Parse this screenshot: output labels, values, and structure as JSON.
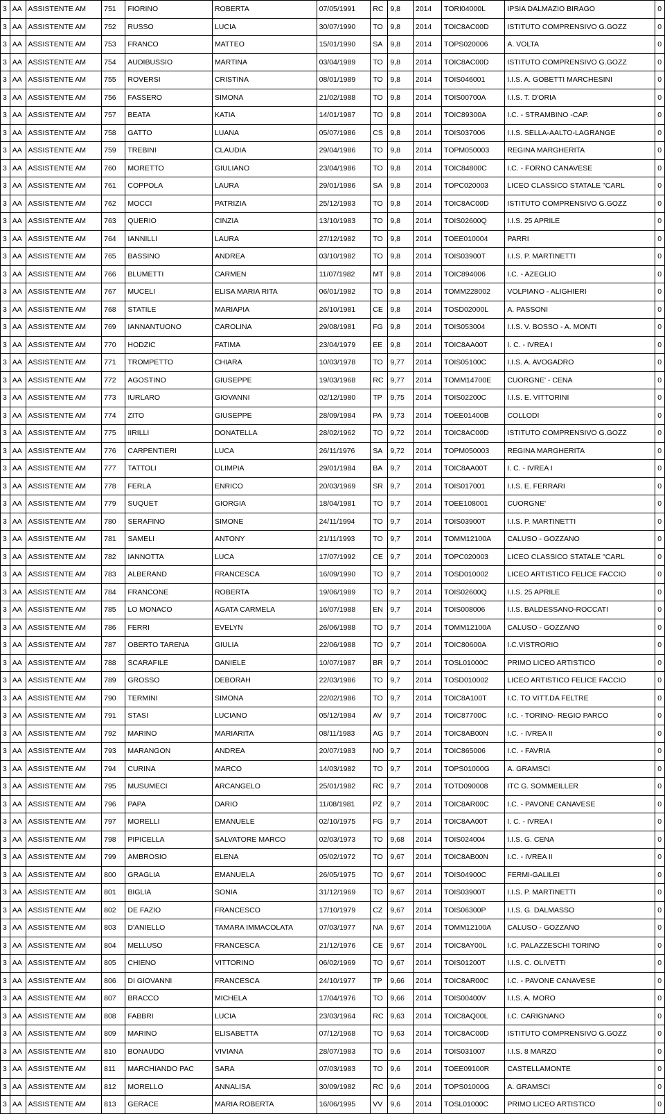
{
  "rows": [
    {
      "n": "751",
      "ln": "FIORINO",
      "fn": "ROBERTA",
      "dob": "07/05/1991",
      "pv": "RC",
      "sc": "9,8",
      "yr": "2014",
      "code": "TORI04000L",
      "school": "IPSIA DALMAZIO BIRAGO",
      "z": "0"
    },
    {
      "n": "752",
      "ln": "RUSSO",
      "fn": "LUCIA",
      "dob": "30/07/1990",
      "pv": "TO",
      "sc": "9,8",
      "yr": "2014",
      "code": "TOIC8AC00D",
      "school": "ISTITUTO COMPRENSIVO G.GOZZ",
      "z": "0"
    },
    {
      "n": "753",
      "ln": "FRANCO",
      "fn": "MATTEO",
      "dob": "15/01/1990",
      "pv": "SA",
      "sc": "9,8",
      "yr": "2014",
      "code": "TOPS020006",
      "school": "A. VOLTA",
      "z": "0"
    },
    {
      "n": "754",
      "ln": "AUDIBUSSIO",
      "fn": "MARTINA",
      "dob": "03/04/1989",
      "pv": "TO",
      "sc": "9,8",
      "yr": "2014",
      "code": "TOIC8AC00D",
      "school": "ISTITUTO COMPRENSIVO G.GOZZ",
      "z": "0"
    },
    {
      "n": "755",
      "ln": "ROVERSI",
      "fn": "CRISTINA",
      "dob": "08/01/1989",
      "pv": "TO",
      "sc": "9,8",
      "yr": "2014",
      "code": "TOIS046001",
      "school": "I.I.S. A. GOBETTI MARCHESINI",
      "z": "0"
    },
    {
      "n": "756",
      "ln": "FASSERO",
      "fn": "SIMONA",
      "dob": "21/02/1988",
      "pv": "TO",
      "sc": "9,8",
      "yr": "2014",
      "code": "TOIS00700A",
      "school": "I.I.S. T. D'ORIA",
      "z": "0"
    },
    {
      "n": "757",
      "ln": "BEATA",
      "fn": "KATIA",
      "dob": "14/01/1987",
      "pv": "TO",
      "sc": "9,8",
      "yr": "2014",
      "code": "TOIC89300A",
      "school": "I.C.  - STRAMBINO -CAP.",
      "z": "0"
    },
    {
      "n": "758",
      "ln": "GATTO",
      "fn": "LUANA",
      "dob": "05/07/1986",
      "pv": "CS",
      "sc": "9,8",
      "yr": "2014",
      "code": "TOIS037006",
      "school": "I.I.S. SELLA-AALTO-LAGRANGE",
      "z": "0"
    },
    {
      "n": "759",
      "ln": "TREBINI",
      "fn": "CLAUDIA",
      "dob": "29/04/1986",
      "pv": "TO",
      "sc": "9,8",
      "yr": "2014",
      "code": "TOPM050003",
      "school": "REGINA MARGHERITA",
      "z": "0"
    },
    {
      "n": "760",
      "ln": "MORETTO",
      "fn": "GIULIANO",
      "dob": "23/04/1986",
      "pv": "TO",
      "sc": "9,8",
      "yr": "2014",
      "code": "TOIC84800C",
      "school": "I.C. - FORNO CANAVESE",
      "z": "0"
    },
    {
      "n": "761",
      "ln": "COPPOLA",
      "fn": "LAURA",
      "dob": "29/01/1986",
      "pv": "SA",
      "sc": "9,8",
      "yr": "2014",
      "code": "TOPC020003",
      "school": "LICEO CLASSICO STATALE \"CARL",
      "z": "0"
    },
    {
      "n": "762",
      "ln": "MOCCI",
      "fn": "PATRIZIA",
      "dob": "25/12/1983",
      "pv": "TO",
      "sc": "9,8",
      "yr": "2014",
      "code": "TOIC8AC00D",
      "school": "ISTITUTO COMPRENSIVO G.GOZZ",
      "z": "0"
    },
    {
      "n": "763",
      "ln": "QUERIO",
      "fn": "CINZIA",
      "dob": "13/10/1983",
      "pv": "TO",
      "sc": "9,8",
      "yr": "2014",
      "code": "TOIS02600Q",
      "school": "I.I.S. 25 APRILE",
      "z": "0"
    },
    {
      "n": "764",
      "ln": "IANNILLI",
      "fn": "LAURA",
      "dob": "27/12/1982",
      "pv": "TO",
      "sc": "9,8",
      "yr": "2014",
      "code": "TOEE010004",
      "school": "PARRI",
      "z": "0"
    },
    {
      "n": "765",
      "ln": "BASSINO",
      "fn": "ANDREA",
      "dob": "03/10/1982",
      "pv": "TO",
      "sc": "9,8",
      "yr": "2014",
      "code": "TOIS03900T",
      "school": "I.I.S. P. MARTINETTI",
      "z": "0"
    },
    {
      "n": "766",
      "ln": "BLUMETTI",
      "fn": "CARMEN",
      "dob": "11/07/1982",
      "pv": "MT",
      "sc": "9,8",
      "yr": "2014",
      "code": "TOIC894006",
      "school": "I.C. -  AZEGLIO",
      "z": "0"
    },
    {
      "n": "767",
      "ln": "MUCELI",
      "fn": "ELISA MARIA RITA",
      "dob": "06/01/1982",
      "pv": "TO",
      "sc": "9,8",
      "yr": "2014",
      "code": "TOMM228002",
      "school": "VOLPIANO - ALIGHIERI",
      "z": "0"
    },
    {
      "n": "768",
      "ln": "STATILE",
      "fn": "MARIAPIA",
      "dob": "26/10/1981",
      "pv": "CE",
      "sc": "9,8",
      "yr": "2014",
      "code": "TOSD02000L",
      "school": "A. PASSONI",
      "z": "0"
    },
    {
      "n": "769",
      "ln": "IANNANTUONO",
      "fn": "CAROLINA",
      "dob": "29/08/1981",
      "pv": "FG",
      "sc": "9,8",
      "yr": "2014",
      "code": "TOIS053004",
      "school": "I.I.S. V. BOSSO - A. MONTI",
      "z": "0"
    },
    {
      "n": "770",
      "ln": "HODZIC",
      "fn": "FATIMA",
      "dob": "23/04/1979",
      "pv": "EE",
      "sc": "9,8",
      "yr": "2014",
      "code": "TOIC8AA00T",
      "school": "I. C. - IVREA I",
      "z": "0"
    },
    {
      "n": "771",
      "ln": "TROMPETTO",
      "fn": "CHIARA",
      "dob": "10/03/1978",
      "pv": "TO",
      "sc": "9,77",
      "yr": "2014",
      "code": "TOIS05100C",
      "school": "I.I.S. A. AVOGADRO",
      "z": "0"
    },
    {
      "n": "772",
      "ln": "AGOSTINO",
      "fn": "GIUSEPPE",
      "dob": "19/03/1968",
      "pv": "RC",
      "sc": "9,77",
      "yr": "2014",
      "code": "TOMM14700E",
      "school": "CUORGNE' - CENA",
      "z": "0"
    },
    {
      "n": "773",
      "ln": "IURLARO",
      "fn": "GIOVANNI",
      "dob": "02/12/1980",
      "pv": "TP",
      "sc": "9,75",
      "yr": "2014",
      "code": "TOIS02200C",
      "school": "I.I.S. E. VITTORINI",
      "z": "0"
    },
    {
      "n": "774",
      "ln": "ZITO",
      "fn": "GIUSEPPE",
      "dob": "28/09/1984",
      "pv": "PA",
      "sc": "9,73",
      "yr": "2014",
      "code": "TOEE01400B",
      "school": "COLLODI",
      "z": "0"
    },
    {
      "n": "775",
      "ln": "IIRILLI",
      "fn": "DONATELLA",
      "dob": "28/02/1962",
      "pv": "TO",
      "sc": "9,72",
      "yr": "2014",
      "code": "TOIC8AC00D",
      "school": "ISTITUTO COMPRENSIVO G.GOZZ",
      "z": "0"
    },
    {
      "n": "776",
      "ln": "CARPENTIERI",
      "fn": "LUCA",
      "dob": "26/11/1976",
      "pv": "SA",
      "sc": "9,72",
      "yr": "2014",
      "code": "TOPM050003",
      "school": "REGINA MARGHERITA",
      "z": "0"
    },
    {
      "n": "777",
      "ln": "TATTOLI",
      "fn": "OLIMPIA",
      "dob": "29/01/1984",
      "pv": "BA",
      "sc": "9,7",
      "yr": "2014",
      "code": "TOIC8AA00T",
      "school": "I. C. - IVREA I",
      "z": "0"
    },
    {
      "n": "778",
      "ln": "FERLA",
      "fn": "ENRICO",
      "dob": "20/03/1969",
      "pv": "SR",
      "sc": "9,7",
      "yr": "2014",
      "code": "TOIS017001",
      "school": "I.I.S. E. FERRARI",
      "z": "0"
    },
    {
      "n": "779",
      "ln": "SUQUET",
      "fn": "GIORGIA",
      "dob": "18/04/1981",
      "pv": "TO",
      "sc": "9,7",
      "yr": "2014",
      "code": "TOEE108001",
      "school": "CUORGNE'",
      "z": "0"
    },
    {
      "n": "780",
      "ln": "SERAFINO",
      "fn": "SIMONE",
      "dob": "24/11/1994",
      "pv": "TO",
      "sc": "9,7",
      "yr": "2014",
      "code": "TOIS03900T",
      "school": "I.I.S. P. MARTINETTI",
      "z": "0"
    },
    {
      "n": "781",
      "ln": "SAMELI",
      "fn": "ANTONY",
      "dob": "21/11/1993",
      "pv": "TO",
      "sc": "9,7",
      "yr": "2014",
      "code": "TOMM12100A",
      "school": "CALUSO - GOZZANO",
      "z": "0"
    },
    {
      "n": "782",
      "ln": "IANNOTTA",
      "fn": "LUCA",
      "dob": "17/07/1992",
      "pv": "CE",
      "sc": "9,7",
      "yr": "2014",
      "code": "TOPC020003",
      "school": "LICEO CLASSICO STATALE \"CARL",
      "z": "0"
    },
    {
      "n": "783",
      "ln": "ALBERAND",
      "fn": "FRANCESCA",
      "dob": "16/09/1990",
      "pv": "TO",
      "sc": "9,7",
      "yr": "2014",
      "code": "TOSD010002",
      "school": "LICEO ARTISTICO FELICE FACCIO",
      "z": "0"
    },
    {
      "n": "784",
      "ln": "FRANCONE",
      "fn": "ROBERTA",
      "dob": "19/06/1989",
      "pv": "TO",
      "sc": "9,7",
      "yr": "2014",
      "code": "TOIS02600Q",
      "school": "I.I.S. 25 APRILE",
      "z": "0"
    },
    {
      "n": "785",
      "ln": "LO MONACO",
      "fn": "AGATA CARMELA",
      "dob": "16/07/1988",
      "pv": "EN",
      "sc": "9,7",
      "yr": "2014",
      "code": "TOIS008006",
      "school": "I.I.S. BALDESSANO-ROCCATI",
      "z": "0"
    },
    {
      "n": "786",
      "ln": "FERRI",
      "fn": "EVELYN",
      "dob": "26/06/1988",
      "pv": "TO",
      "sc": "9,7",
      "yr": "2014",
      "code": "TOMM12100A",
      "school": "CALUSO - GOZZANO",
      "z": "0"
    },
    {
      "n": "787",
      "ln": "OBERTO TARENA",
      "fn": "GIULIA",
      "dob": "22/06/1988",
      "pv": "TO",
      "sc": "9,7",
      "yr": "2014",
      "code": "TOIC80600A",
      "school": "I.C.VISTRORIO",
      "z": "0"
    },
    {
      "n": "788",
      "ln": "SCARAFILE",
      "fn": "DANIELE",
      "dob": "10/07/1987",
      "pv": "BR",
      "sc": "9,7",
      "yr": "2014",
      "code": "TOSL01000C",
      "school": "PRIMO LICEO ARTISTICO",
      "z": "0"
    },
    {
      "n": "789",
      "ln": "GROSSO",
      "fn": "DEBORAH",
      "dob": "22/03/1986",
      "pv": "TO",
      "sc": "9,7",
      "yr": "2014",
      "code": "TOSD010002",
      "school": "LICEO ARTISTICO FELICE FACCIO",
      "z": "0"
    },
    {
      "n": "790",
      "ln": "TERMINI",
      "fn": "SIMONA",
      "dob": "22/02/1986",
      "pv": "TO",
      "sc": "9,7",
      "yr": "2014",
      "code": "TOIC8A100T",
      "school": "I.C. TO VITT.DA FELTRE",
      "z": "0"
    },
    {
      "n": "791",
      "ln": "STASI",
      "fn": "LUCIANO",
      "dob": "05/12/1984",
      "pv": "AV",
      "sc": "9,7",
      "yr": "2014",
      "code": "TOIC87700C",
      "school": "I.C. - TORINO- REGIO PARCO",
      "z": "0"
    },
    {
      "n": "792",
      "ln": "MARINO",
      "fn": "MARIARITA",
      "dob": "08/11/1983",
      "pv": "AG",
      "sc": "9,7",
      "yr": "2014",
      "code": "TOIC8AB00N",
      "school": "I.C. - IVREA II",
      "z": "0"
    },
    {
      "n": "793",
      "ln": "MARANGON",
      "fn": "ANDREA",
      "dob": "20/07/1983",
      "pv": "NO",
      "sc": "9,7",
      "yr": "2014",
      "code": "TOIC865006",
      "school": "I.C. - FAVRIA",
      "z": "0"
    },
    {
      "n": "794",
      "ln": "CURINA",
      "fn": "MARCO",
      "dob": "14/03/1982",
      "pv": "TO",
      "sc": "9,7",
      "yr": "2014",
      "code": "TOPS01000G",
      "school": "A. GRAMSCI",
      "z": "0"
    },
    {
      "n": "795",
      "ln": "MUSUMECI",
      "fn": "ARCANGELO",
      "dob": "25/01/1982",
      "pv": "RC",
      "sc": "9,7",
      "yr": "2014",
      "code": "TOTD090008",
      "school": "ITC G. SOMMEILLER",
      "z": "0"
    },
    {
      "n": "796",
      "ln": "PAPA",
      "fn": "DARIO",
      "dob": "11/08/1981",
      "pv": "PZ",
      "sc": "9,7",
      "yr": "2014",
      "code": "TOIC8AR00C",
      "school": "I.C. - PAVONE CANAVESE",
      "z": "0"
    },
    {
      "n": "797",
      "ln": "MORELLI",
      "fn": "EMANUELE",
      "dob": "02/10/1975",
      "pv": "FG",
      "sc": "9,7",
      "yr": "2014",
      "code": "TOIC8AA00T",
      "school": "I. C. - IVREA I",
      "z": "0"
    },
    {
      "n": "798",
      "ln": "PIPICELLA",
      "fn": "SALVATORE MARCO",
      "dob": "02/03/1973",
      "pv": "TO",
      "sc": "9,68",
      "yr": "2014",
      "code": "TOIS024004",
      "school": "I.I.S. G. CENA",
      "z": "0"
    },
    {
      "n": "799",
      "ln": "AMBROSIO",
      "fn": "ELENA",
      "dob": "05/02/1972",
      "pv": "TO",
      "sc": "9,67",
      "yr": "2014",
      "code": "TOIC8AB00N",
      "school": "I.C. - IVREA II",
      "z": "0"
    },
    {
      "n": "800",
      "ln": "GRAGLIA",
      "fn": "EMANUELA",
      "dob": "26/05/1975",
      "pv": "TO",
      "sc": "9,67",
      "yr": "2014",
      "code": "TOIS04900C",
      "school": "FERMI-GALILEI",
      "z": "0"
    },
    {
      "n": "801",
      "ln": "BIGLIA",
      "fn": "SONIA",
      "dob": "31/12/1969",
      "pv": "TO",
      "sc": "9,67",
      "yr": "2014",
      "code": "TOIS03900T",
      "school": "I.I.S. P. MARTINETTI",
      "z": "0"
    },
    {
      "n": "802",
      "ln": "DE FAZIO",
      "fn": "FRANCESCO",
      "dob": "17/10/1979",
      "pv": "CZ",
      "sc": "9,67",
      "yr": "2014",
      "code": "TOIS06300P",
      "school": "I.I.S. G. DALMASSO",
      "z": "0"
    },
    {
      "n": "803",
      "ln": "D'ANIELLO",
      "fn": "TAMARA IMMACOLATA",
      "dob": "07/03/1977",
      "pv": "NA",
      "sc": "9,67",
      "yr": "2014",
      "code": "TOMM12100A",
      "school": "CALUSO - GOZZANO",
      "z": "0"
    },
    {
      "n": "804",
      "ln": "MELLUSO",
      "fn": "FRANCESCA",
      "dob": "21/12/1976",
      "pv": "CE",
      "sc": "9,67",
      "yr": "2014",
      "code": "TOIC8AY00L",
      "school": "I.C.  PALAZZESCHI TORINO",
      "z": "0"
    },
    {
      "n": "805",
      "ln": "CHIENO",
      "fn": "VITTORINO",
      "dob": "06/02/1969",
      "pv": "TO",
      "sc": "9,67",
      "yr": "2014",
      "code": "TOIS01200T",
      "school": "I.I.S. C. OLIVETTI",
      "z": "0"
    },
    {
      "n": "806",
      "ln": "DI GIOVANNI",
      "fn": "FRANCESCA",
      "dob": "24/10/1977",
      "pv": "TP",
      "sc": "9,66",
      "yr": "2014",
      "code": "TOIC8AR00C",
      "school": "I.C. - PAVONE CANAVESE",
      "z": "0"
    },
    {
      "n": "807",
      "ln": "BRACCO",
      "fn": "MICHELA",
      "dob": "17/04/1976",
      "pv": "TO",
      "sc": "9,66",
      "yr": "2014",
      "code": "TOIS00400V",
      "school": "I.I.S. A. MORO",
      "z": "0"
    },
    {
      "n": "808",
      "ln": "FABBRI",
      "fn": "LUCIA",
      "dob": "23/03/1964",
      "pv": "RC",
      "sc": "9,63",
      "yr": "2014",
      "code": "TOIC8AQ00L",
      "school": "I.C. CARIGNANO",
      "z": "0"
    },
    {
      "n": "809",
      "ln": "MARINO",
      "fn": "ELISABETTA",
      "dob": "07/12/1968",
      "pv": "TO",
      "sc": "9,63",
      "yr": "2014",
      "code": "TOIC8AC00D",
      "school": "ISTITUTO COMPRENSIVO G.GOZZ",
      "z": "0"
    },
    {
      "n": "810",
      "ln": "BONAUDO",
      "fn": "VIVIANA",
      "dob": "28/07/1983",
      "pv": "TO",
      "sc": "9,6",
      "yr": "2014",
      "code": "TOIS031007",
      "school": "I.I.S. 8 MARZO",
      "z": "0"
    },
    {
      "n": "811",
      "ln": "MARCHIANDO PAC",
      "fn": "SARA",
      "dob": "07/03/1983",
      "pv": "TO",
      "sc": "9,6",
      "yr": "2014",
      "code": "TOEE09100R",
      "school": "CASTELLAMONTE",
      "z": "0"
    },
    {
      "n": "812",
      "ln": "MORELLO",
      "fn": "ANNALISA",
      "dob": "30/09/1982",
      "pv": "RC",
      "sc": "9,6",
      "yr": "2014",
      "code": "TOPS01000G",
      "school": "A. GRAMSCI",
      "z": "0"
    },
    {
      "n": "813",
      "ln": "GERACE",
      "fn": "MARIA ROBERTA",
      "dob": "16/06/1995",
      "pv": "VV",
      "sc": "9,6",
      "yr": "2014",
      "code": "TOSL01000C",
      "school": "PRIMO LICEO ARTISTICO",
      "z": "0"
    }
  ],
  "fixed": {
    "col0": "3",
    "col1": "AA",
    "col2": "ASSISTENTE AM"
  }
}
